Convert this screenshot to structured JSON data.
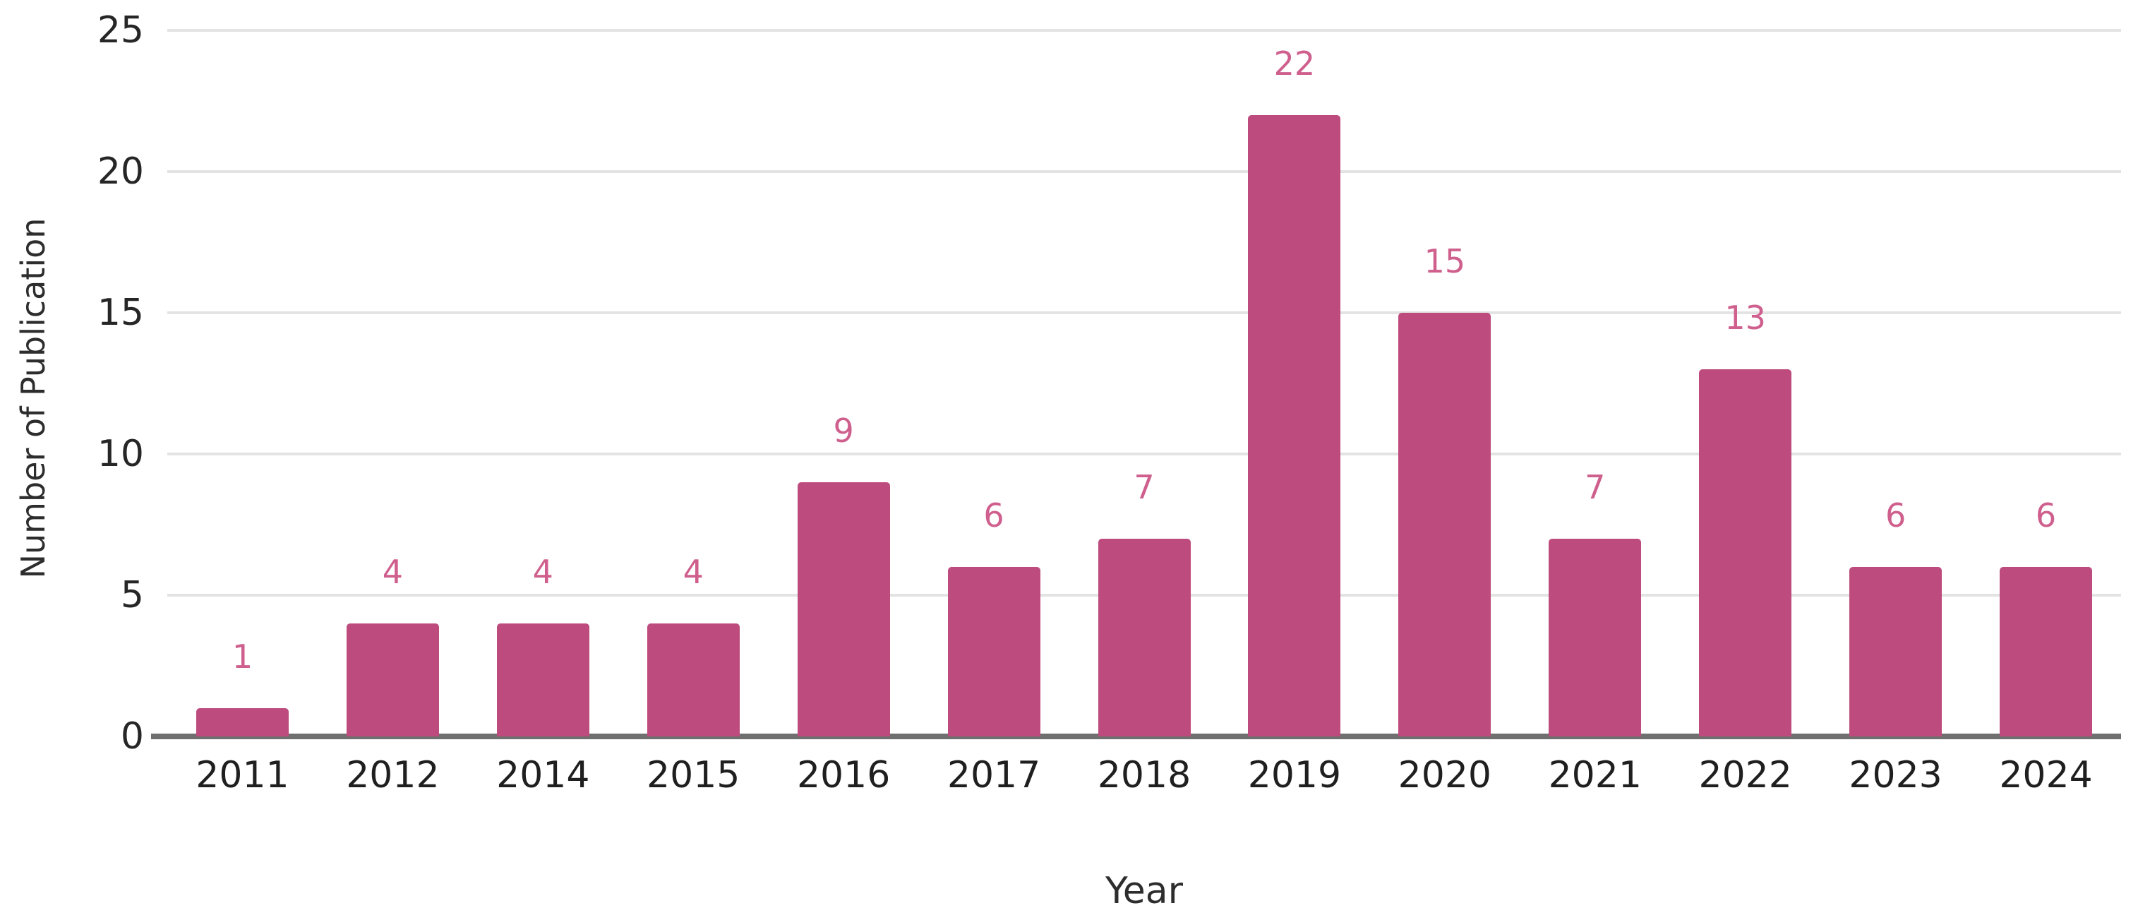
{
  "chart_data": {
    "type": "bar",
    "categories": [
      "2011",
      "2012",
      "2014",
      "2015",
      "2016",
      "2017",
      "2018",
      "2019",
      "2020",
      "2021",
      "2022",
      "2023",
      "2024"
    ],
    "values": [
      1,
      4,
      4,
      4,
      9,
      6,
      7,
      22,
      15,
      7,
      13,
      6,
      6
    ],
    "title": "",
    "xlabel": "Year",
    "ylabel": "Number of Publication",
    "ylim": [
      0,
      25
    ],
    "yticks": [
      0,
      5,
      10,
      15,
      20,
      25
    ],
    "grid": "horizontal",
    "legend": "none",
    "data_labels": "above-bars",
    "colors": {
      "bar": "#bd4b7e",
      "value_label": "#cf5f8d",
      "axis_text": "#262626",
      "gridline": "#e3e3e3",
      "baseline": "#6f6f6f",
      "background": "#ffffff"
    }
  }
}
